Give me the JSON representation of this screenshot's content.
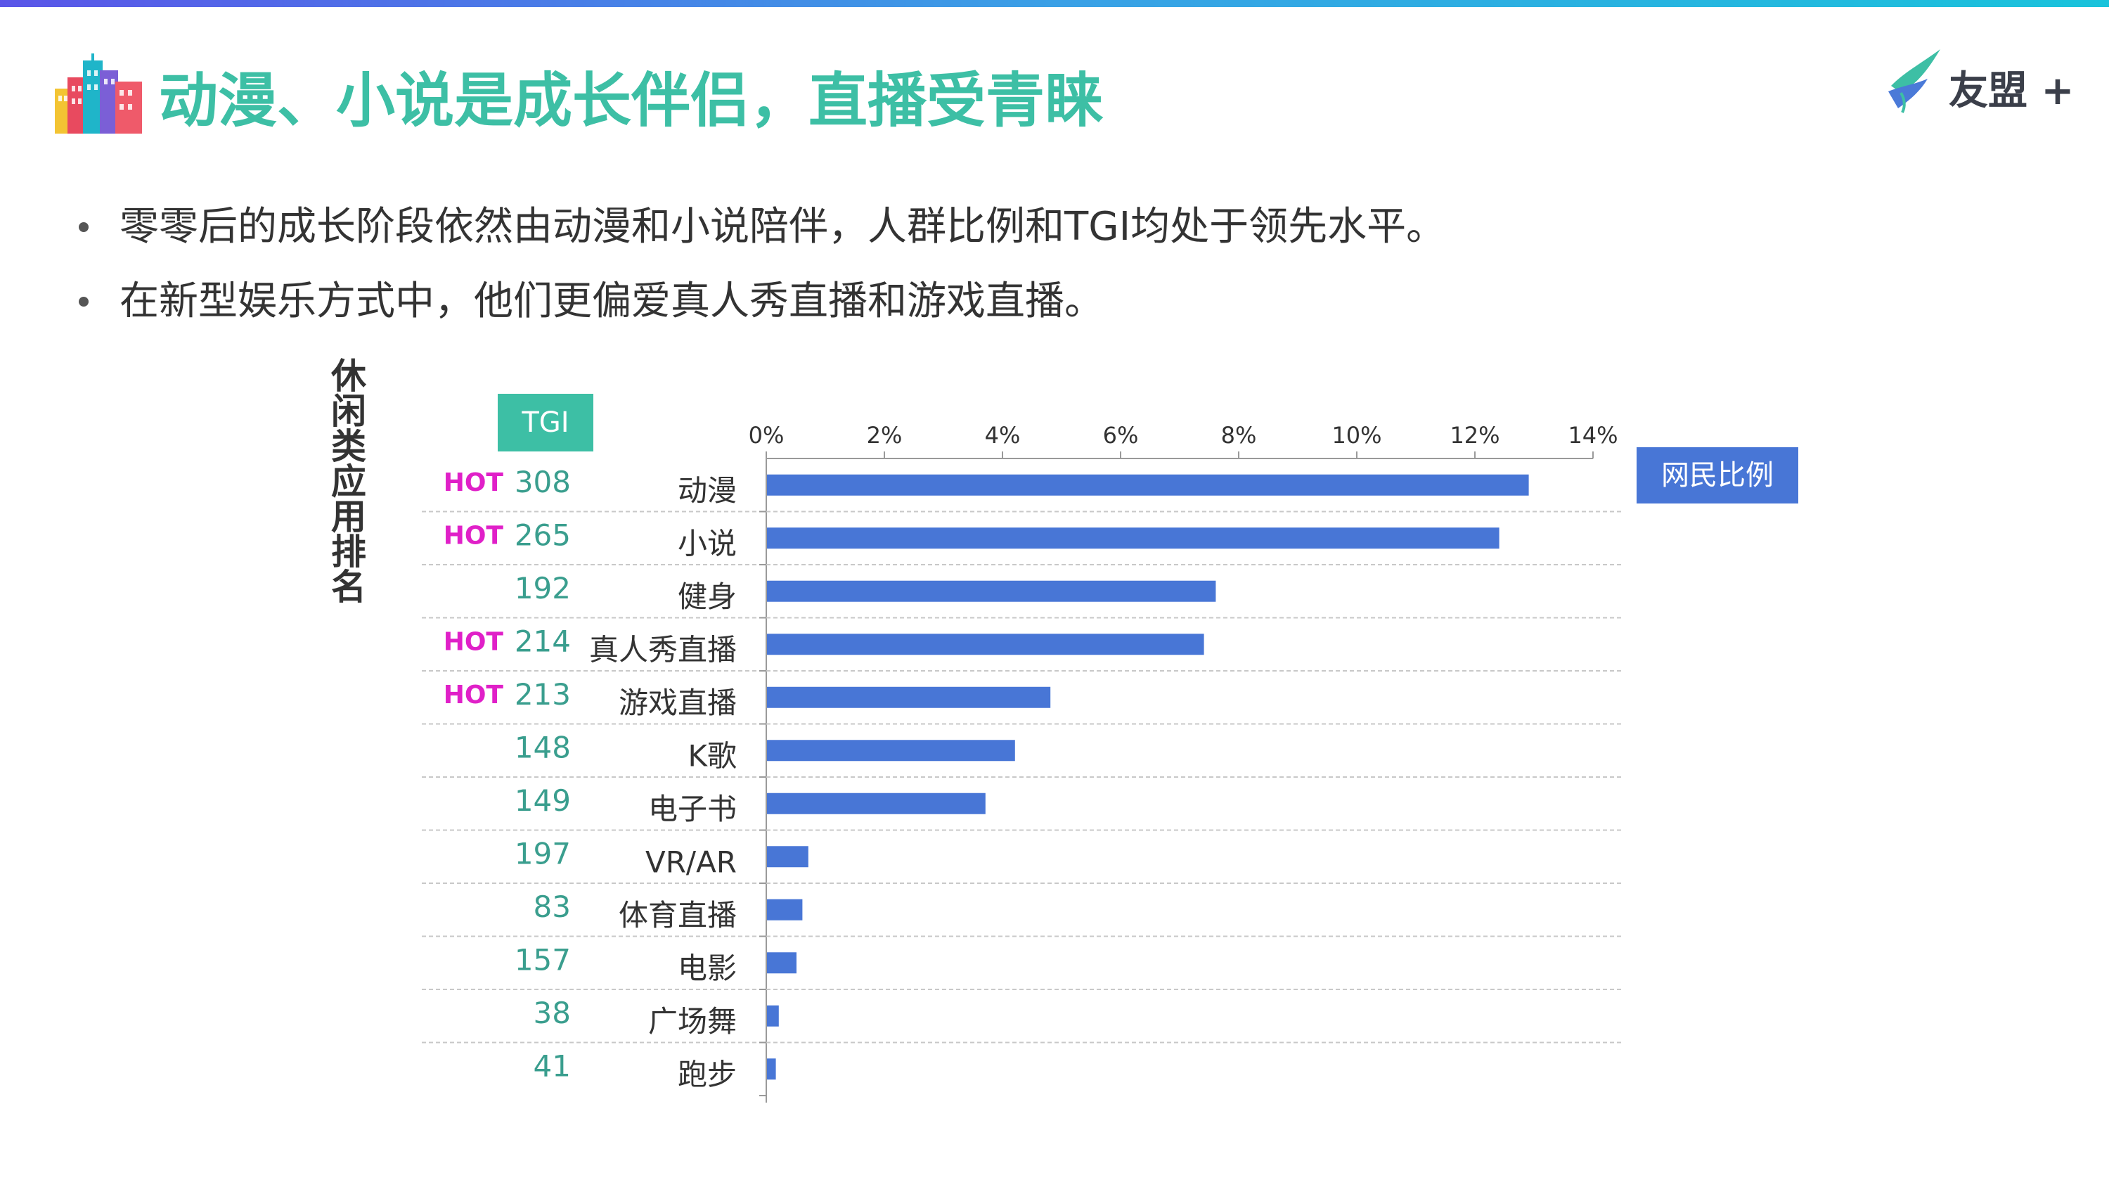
{
  "title": "动漫、小说是成长伴侣，直播受青睐",
  "logo": {
    "text": "友盟 +",
    "icon": "umeng-bird-icon"
  },
  "title_icon": "city-buildings-icon",
  "bullets": [
    "零零后的成长阶段依然由动漫和小说陪伴，人群比例和TGI均处于领先水平。",
    "在新型娱乐方式中，他们更偏爱真人秀直播和游戏直播。"
  ],
  "colors": {
    "accent": "#3dbfa5",
    "bar": "#4876d6",
    "hot": "#e020c8",
    "tgi_text": "#3a9e8e"
  },
  "chart_data": {
    "type": "bar",
    "orientation": "horizontal",
    "ylabel": "休闲类应用排名",
    "tgi_header": "TGI",
    "legend": "网民比例",
    "xlim": [
      0,
      14
    ],
    "x_ticks": [
      "0%",
      "2%",
      "4%",
      "6%",
      "8%",
      "10%",
      "12%",
      "14%"
    ],
    "hot_label": "HOT",
    "categories": [
      "动漫",
      "小说",
      "健身",
      "真人秀直播",
      "游戏直播",
      "K歌",
      "电子书",
      "VR/AR",
      "体育直播",
      "电影",
      "广场舞",
      "跑步"
    ],
    "values": [
      12.9,
      12.4,
      7.6,
      7.4,
      4.8,
      4.2,
      3.7,
      0.7,
      0.6,
      0.5,
      0.2,
      0.15
    ],
    "tgi": [
      "308",
      "265",
      "192",
      "214",
      "213",
      "148",
      "149",
      "197",
      "83",
      "157",
      "38",
      "41"
    ],
    "hot": [
      true,
      true,
      false,
      true,
      true,
      false,
      false,
      false,
      false,
      false,
      false,
      false
    ],
    "grid": "horizontal dashed row separators"
  }
}
